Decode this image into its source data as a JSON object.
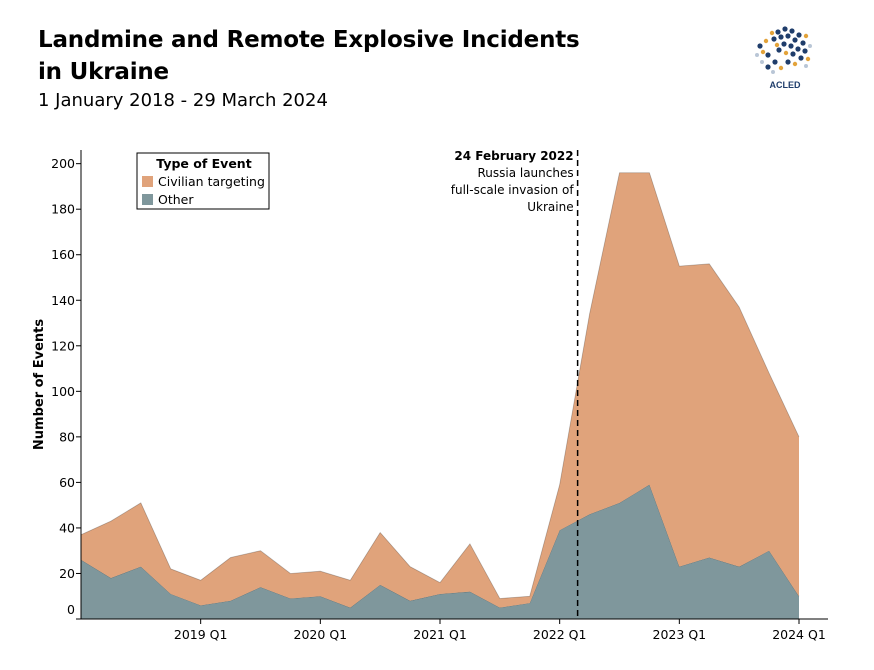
{
  "title": "Landmine and Remote Explosive Incidents in Ukraine",
  "subtitle": "1 January 2018 - 29 March 2024",
  "logo_text": "ACLED",
  "chart_data": {
    "type": "area",
    "stacked": true,
    "ylabel": "Number of Events",
    "xlabel": "",
    "ylim": [
      0,
      206
    ],
    "yticks": [
      0,
      20,
      40,
      60,
      80,
      100,
      120,
      140,
      160,
      180,
      200
    ],
    "x_tick_labels": [
      "2019 Q1",
      "2020 Q1",
      "2021 Q1",
      "2022 Q1",
      "2023 Q1",
      "2024 Q1"
    ],
    "x_tick_index": [
      4,
      8,
      12,
      16,
      20,
      24
    ],
    "categories": [
      "2018 Q1",
      "2018 Q2",
      "2018 Q3",
      "2018 Q4",
      "2019 Q1",
      "2019 Q2",
      "2019 Q3",
      "2019 Q4",
      "2020 Q1",
      "2020 Q2",
      "2020 Q3",
      "2020 Q4",
      "2021 Q1",
      "2021 Q2",
      "2021 Q3",
      "2021 Q4",
      "2022 Q1",
      "2022 Q2",
      "2022 Q3",
      "2022 Q4",
      "2023 Q1",
      "2023 Q2",
      "2023 Q3",
      "2023 Q4",
      "2024 Q1"
    ],
    "series": [
      {
        "name": "Other",
        "color": "#7f979c",
        "values": [
          26,
          18,
          23,
          11,
          6,
          8,
          14,
          9,
          10,
          5,
          15,
          8,
          11,
          12,
          5,
          7,
          39,
          46,
          51,
          59,
          23,
          27,
          23,
          30,
          10
        ]
      },
      {
        "name": "Civilian targeting",
        "color": "#e0a37b",
        "values": [
          11,
          25,
          28,
          11,
          11,
          19,
          16,
          11,
          11,
          12,
          23,
          15,
          5,
          21,
          4,
          3,
          20,
          88,
          145,
          137,
          132,
          129,
          114,
          78,
          70
        ]
      }
    ],
    "legend": {
      "title": "Type of Event",
      "position": "top-left",
      "items": [
        "Civilian targeting",
        "Other"
      ]
    },
    "annotation": {
      "at_index": 16.6,
      "date": "24 February 2022",
      "text": [
        "Russia launches",
        "full-scale invasion of",
        "Ukraine"
      ]
    },
    "grid": false
  }
}
